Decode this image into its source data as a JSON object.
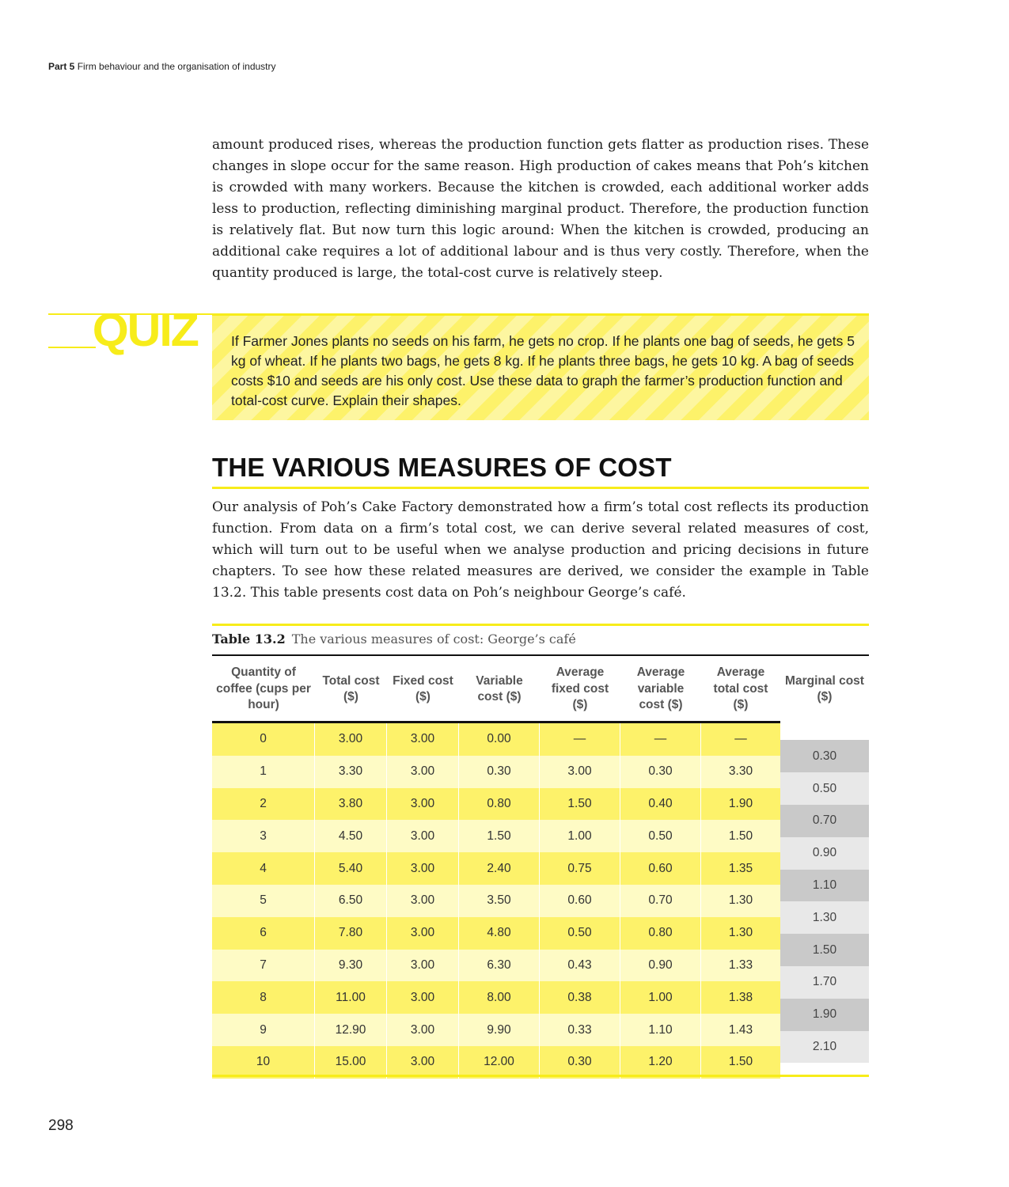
{
  "header": {
    "part": "Part 5",
    "title": "Firm behaviour and the organisation of industry"
  },
  "intro_paragraph": "amount produced rises, whereas the production function gets flatter as production rises. These changes in slope occur for the same reason. High production of cakes means that Poh’s kitchen is crowded with many workers. Because the kitchen is crowded, each additional worker adds less to production, reflecting diminishing marginal product. Therefore, the production function is relatively flat. But now turn this logic around: When the kitchen is crowded, producing an additional cake requires a lot of additional labour and is thus very costly. Therefore, when the quantity produced is large, the total-cost curve is relatively steep.",
  "quiz": {
    "label": "QUIZ",
    "text": "If Farmer Jones plants no seeds on his farm, he gets no crop. If he plants one bag of seeds, he gets 5 kg of wheat. If he plants two bags, he gets 8 kg. If he plants three bags, he gets 10 kg. A bag of seeds costs $10 and seeds are his only cost. Use these data to graph the farmer’s production function and total-cost curve. Explain their shapes.",
    "accent_color": "#f7ec1a"
  },
  "section": {
    "heading": "THE VARIOUS MEASURES OF COST",
    "paragraph": "Our analysis of Poh’s Cake Factory demonstrated how a firm’s total cost reflects its production function. From data on a firm’s total cost, we can derive several related measures of cost, which will turn out to be useful when we analyse production and pricing decisions in future chapters. To see how these related measures are derived, we consider the example in Table 13.2. This table presents cost data on Poh’s neighbour  George’s café."
  },
  "table": {
    "label": "Table 13.2",
    "title": "The various measures of cost: George’s café",
    "headers": [
      "Quantity of coffee (cups per hour)",
      "Total cost ($)",
      "Fixed cost ($)",
      "Variable cost ($)",
      "Average fixed cost ($)",
      "Average variable cost ($)",
      "Average total cost ($)",
      "Marginal cost ($)"
    ],
    "rows": [
      [
        "0",
        "3.00",
        "3.00",
        "0.00",
        "—",
        "—",
        "—"
      ],
      [
        "1",
        "3.30",
        "3.00",
        "0.30",
        "3.00",
        "0.30",
        "3.30"
      ],
      [
        "2",
        "3.80",
        "3.00",
        "0.80",
        "1.50",
        "0.40",
        "1.90"
      ],
      [
        "3",
        "4.50",
        "3.00",
        "1.50",
        "1.00",
        "0.50",
        "1.50"
      ],
      [
        "4",
        "5.40",
        "3.00",
        "2.40",
        "0.75",
        "0.60",
        "1.35"
      ],
      [
        "5",
        "6.50",
        "3.00",
        "3.50",
        "0.60",
        "0.70",
        "1.30"
      ],
      [
        "6",
        "7.80",
        "3.00",
        "4.80",
        "0.50",
        "0.80",
        "1.30"
      ],
      [
        "7",
        "9.30",
        "3.00",
        "6.30",
        "0.43",
        "0.90",
        "1.33"
      ],
      [
        "8",
        "11.00",
        "3.00",
        "8.00",
        "0.38",
        "1.00",
        "1.38"
      ],
      [
        "9",
        "12.90",
        "3.00",
        "9.90",
        "0.33",
        "1.10",
        "1.43"
      ],
      [
        "10",
        "15.00",
        "3.00",
        "12.00",
        "0.30",
        "1.20",
        "1.50"
      ]
    ],
    "marginal_cost": [
      "0.30",
      "0.50",
      "0.70",
      "0.90",
      "1.10",
      "1.30",
      "1.50",
      "1.70",
      "1.90",
      "2.10"
    ]
  },
  "page_number": "298"
}
